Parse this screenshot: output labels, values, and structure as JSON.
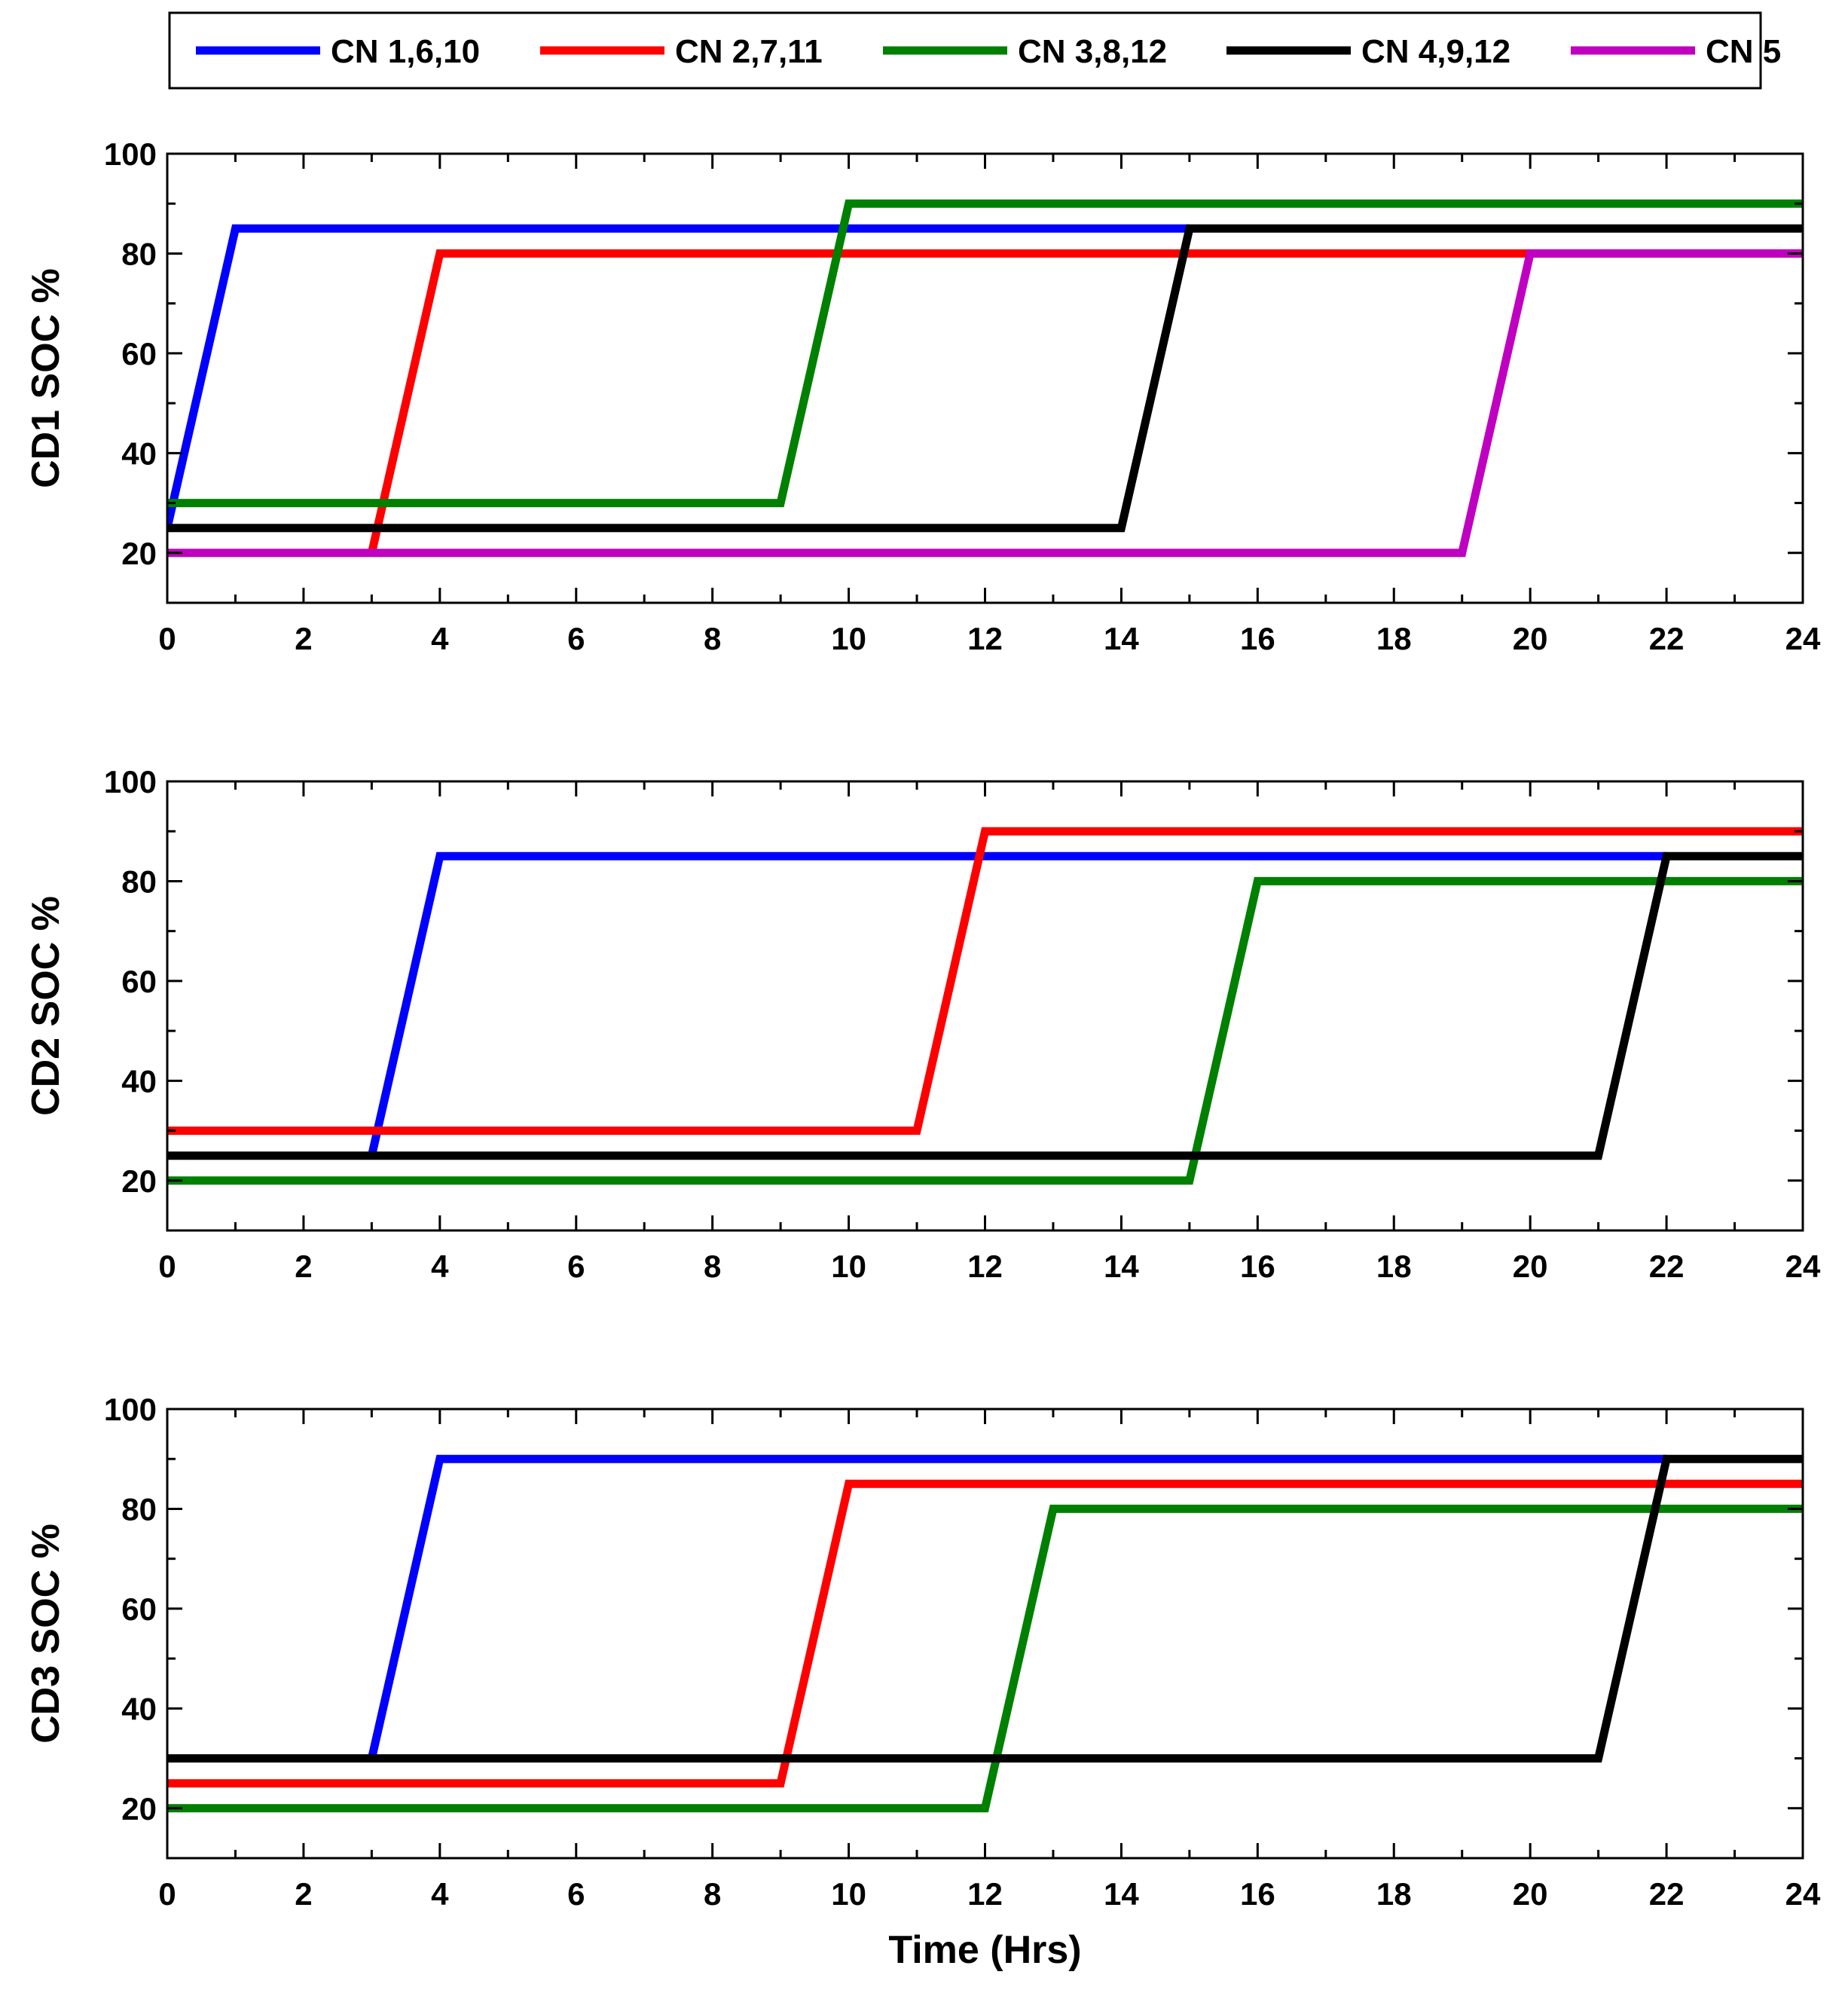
{
  "chart_data": {
    "type": "line",
    "xlabel": "Time (Hrs)",
    "legend": {
      "placement": "top",
      "entries": [
        {
          "label": "CN 1,6,10",
          "color": "#0000ff"
        },
        {
          "label": "CN 2,7,11",
          "color": "#ff0000"
        },
        {
          "label": "CN 3,8,12",
          "color": "#008000"
        },
        {
          "label": "CN 4,9,12",
          "color": "#000000"
        },
        {
          "label": "CN 5",
          "color": "#c000c0"
        }
      ]
    },
    "panels": [
      {
        "ylabel": "CD1 SOC %",
        "xlim": [
          0,
          24
        ],
        "ylim": [
          10,
          100
        ],
        "xticks": [
          0,
          2,
          4,
          6,
          8,
          10,
          12,
          14,
          16,
          18,
          20,
          22,
          24
        ],
        "yticks": [
          20,
          40,
          60,
          80,
          100
        ],
        "series": [
          {
            "name": "CN 1,6,10",
            "color": "#0000ff",
            "x": [
              0,
              1,
              15
            ],
            "y": [
              25,
              85,
              85
            ]
          },
          {
            "name": "CN 2,7,11",
            "color": "#ff0000",
            "x": [
              3,
              4,
              24
            ],
            "y": [
              20,
              80,
              80
            ]
          },
          {
            "name": "CN 3,8,12",
            "color": "#008000",
            "x": [
              0,
              9,
              10,
              24
            ],
            "y": [
              30,
              30,
              90,
              90
            ]
          },
          {
            "name": "CN 4,9,12",
            "color": "#000000",
            "x": [
              0,
              14,
              15,
              24
            ],
            "y": [
              25,
              25,
              85,
              85
            ]
          },
          {
            "name": "CN 5",
            "color": "#c000c0",
            "x": [
              0,
              19,
              20,
              24
            ],
            "y": [
              20,
              20,
              80,
              80
            ]
          }
        ]
      },
      {
        "ylabel": "CD2 SOC %",
        "xlim": [
          0,
          24
        ],
        "ylim": [
          10,
          100
        ],
        "xticks": [
          0,
          2,
          4,
          6,
          8,
          10,
          12,
          14,
          16,
          18,
          20,
          22,
          24
        ],
        "yticks": [
          20,
          40,
          60,
          80,
          100
        ],
        "series": [
          {
            "name": "CN 1,6,10",
            "color": "#0000ff",
            "x": [
              3,
              4,
              22
            ],
            "y": [
              25,
              85,
              85
            ]
          },
          {
            "name": "CN 2,7,11",
            "color": "#ff0000",
            "x": [
              0,
              11,
              12,
              24
            ],
            "y": [
              30,
              30,
              90,
              90
            ]
          },
          {
            "name": "CN 3,8,12",
            "color": "#008000",
            "x": [
              0,
              15,
              16,
              24
            ],
            "y": [
              20,
              20,
              80,
              80
            ]
          },
          {
            "name": "CN 4,9,12",
            "color": "#000000",
            "x": [
              0,
              21,
              22,
              24
            ],
            "y": [
              25,
              25,
              85,
              85
            ]
          }
        ]
      },
      {
        "ylabel": "CD3 SOC %",
        "xlim": [
          0,
          24
        ],
        "ylim": [
          10,
          100
        ],
        "xticks": [
          0,
          2,
          4,
          6,
          8,
          10,
          12,
          14,
          16,
          18,
          20,
          22,
          24
        ],
        "yticks": [
          20,
          40,
          60,
          80,
          100
        ],
        "series": [
          {
            "name": "CN 1,6,10",
            "color": "#0000ff",
            "x": [
              3,
              4,
              22
            ],
            "y": [
              30,
              90,
              90
            ]
          },
          {
            "name": "CN 2,7,11",
            "color": "#ff0000",
            "x": [
              0,
              9,
              10,
              24
            ],
            "y": [
              25,
              25,
              85,
              85
            ]
          },
          {
            "name": "CN 3,8,12",
            "color": "#008000",
            "x": [
              0,
              12,
              13,
              24
            ],
            "y": [
              20,
              20,
              80,
              80
            ]
          },
          {
            "name": "CN 4,9,12",
            "color": "#000000",
            "x": [
              0,
              21,
              22,
              24
            ],
            "y": [
              30,
              30,
              90,
              90
            ]
          }
        ]
      }
    ]
  }
}
